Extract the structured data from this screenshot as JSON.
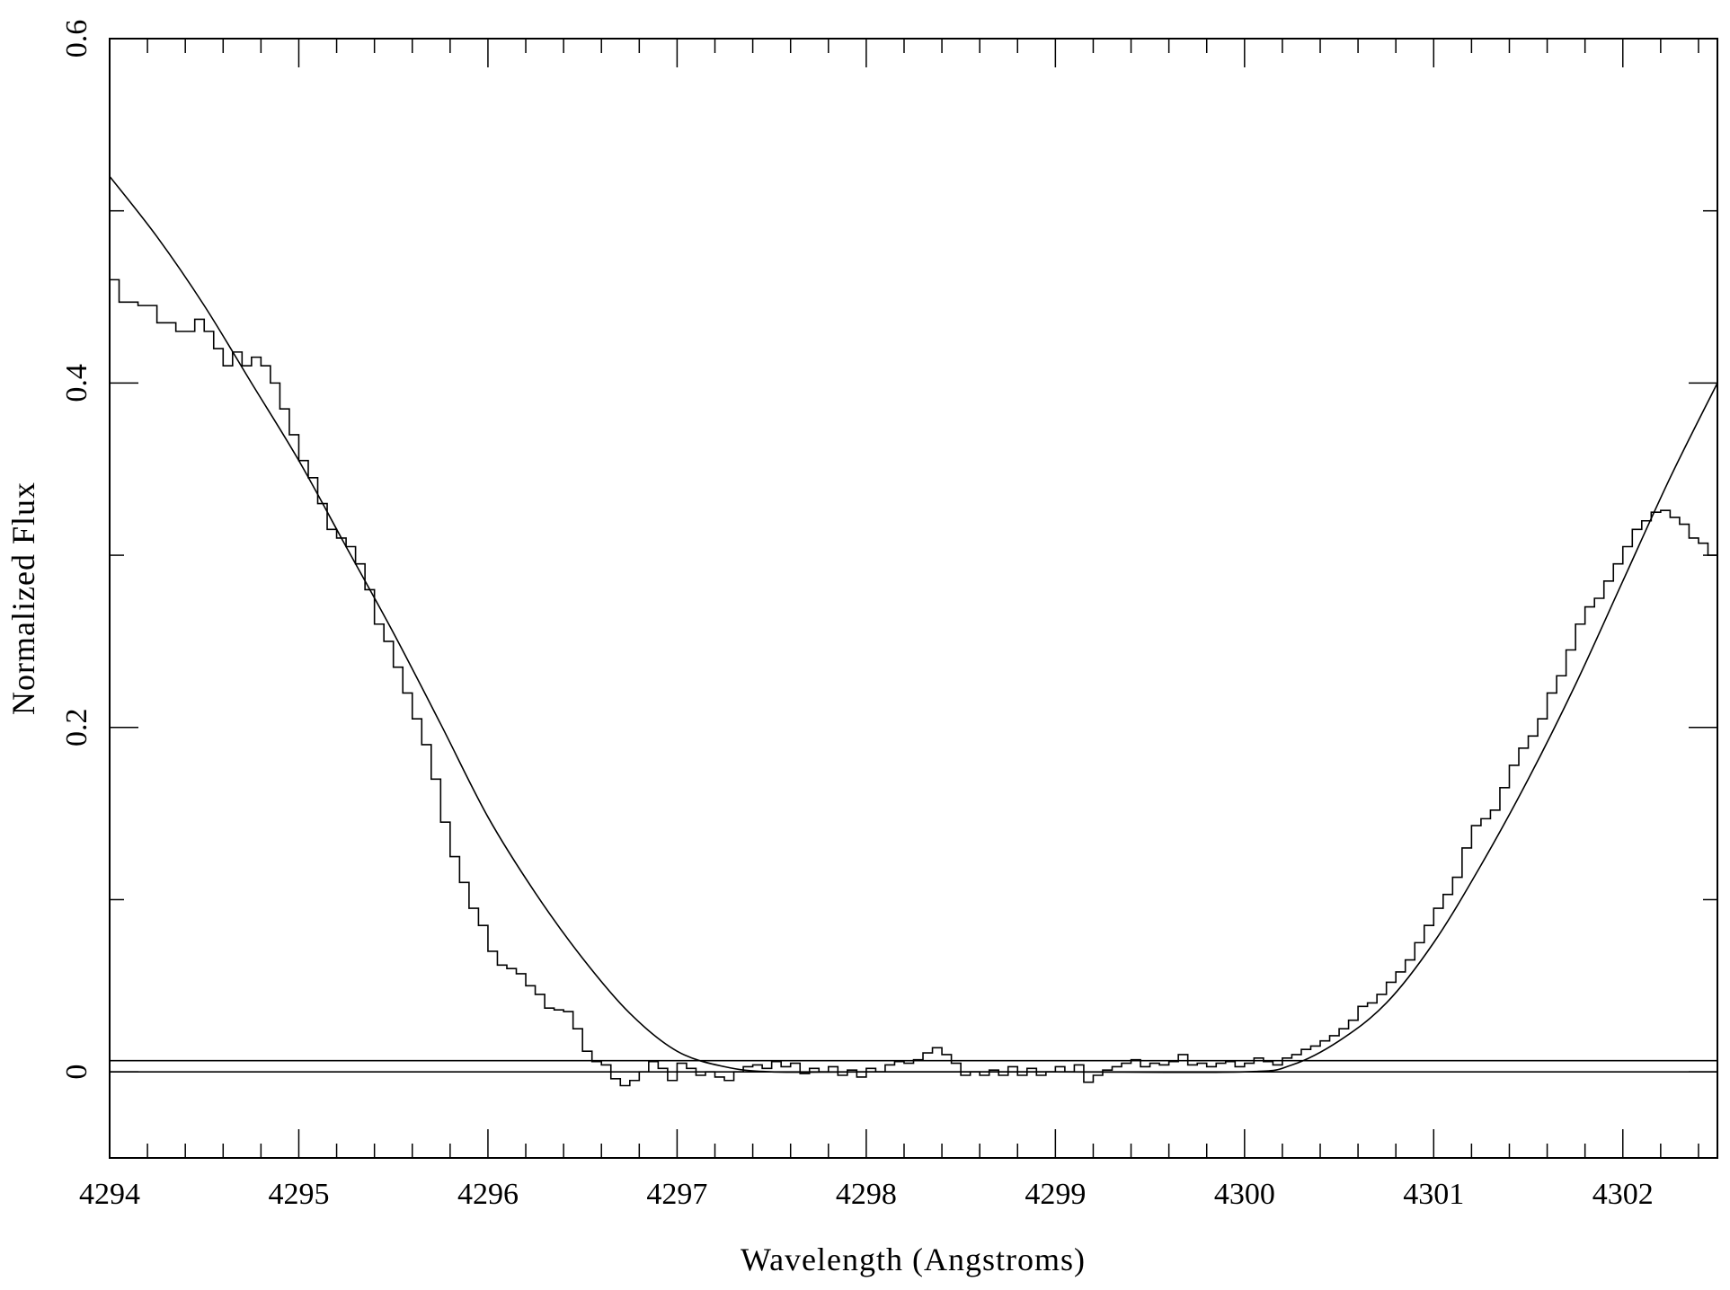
{
  "chart_data": {
    "type": "line",
    "title": "",
    "xlabel": "Wavelength (Angstroms)",
    "ylabel": "Normalized Flux",
    "xlim": [
      4294,
      4302.5
    ],
    "ylim": [
      -0.05,
      0.6
    ],
    "x_ticks": [
      4294,
      4295,
      4296,
      4297,
      4298,
      4299,
      4300,
      4301,
      4302
    ],
    "x_tick_labels": [
      "4294",
      "4295",
      "4296",
      "4297",
      "4298",
      "4299",
      "4300",
      "4301",
      "4302"
    ],
    "y_ticks": [
      0,
      0.2,
      0.4,
      0.6
    ],
    "y_tick_labels": [
      "0",
      "0.2",
      "0.4",
      "0.6"
    ],
    "x_minor_step": 0.2,
    "y_minor_step": 0.1,
    "grid": false,
    "colors": {
      "lines": "#000000",
      "background": "#ffffff"
    },
    "series": [
      {
        "style": "step",
        "x": [
          4294.0,
          4294.05,
          4294.15,
          4294.25,
          4294.35,
          4294.45,
          4294.5,
          4294.55,
          4294.6,
          4294.65,
          4294.7,
          4294.75,
          4294.8,
          4294.85,
          4294.9,
          4294.95,
          4295.0,
          4295.05,
          4295.1,
          4295.15,
          4295.2,
          4295.25,
          4295.3,
          4295.35,
          4295.4,
          4295.45,
          4295.5,
          4295.55,
          4295.6,
          4295.65,
          4295.7,
          4295.75,
          4295.8,
          4295.85,
          4295.9,
          4295.95,
          4296.0,
          4296.05,
          4296.1,
          4296.15,
          4296.2,
          4296.25,
          4296.3,
          4296.35,
          4296.4,
          4296.45,
          4296.5,
          4296.55,
          4296.6,
          4296.65,
          4296.7,
          4296.75,
          4296.8,
          4296.85,
          4296.9,
          4296.95,
          4297.0,
          4297.05,
          4297.1,
          4297.15,
          4297.2,
          4297.25,
          4297.3,
          4297.35,
          4297.4,
          4297.45,
          4297.5,
          4297.55,
          4297.6,
          4297.65,
          4297.7,
          4297.75,
          4297.8,
          4297.85,
          4297.9,
          4297.95,
          4298.0,
          4298.05,
          4298.1,
          4298.15,
          4298.2,
          4298.25,
          4298.3,
          4298.35,
          4298.4,
          4298.45,
          4298.5,
          4298.55,
          4298.6,
          4298.65,
          4298.7,
          4298.75,
          4298.8,
          4298.85,
          4298.9,
          4298.95,
          4299.0,
          4299.05,
          4299.1,
          4299.15,
          4299.2,
          4299.25,
          4299.3,
          4299.35,
          4299.4,
          4299.45,
          4299.5,
          4299.55,
          4299.6,
          4299.65,
          4299.7,
          4299.75,
          4299.8,
          4299.85,
          4299.9,
          4299.95,
          4300.0,
          4300.05,
          4300.1,
          4300.15,
          4300.2,
          4300.25,
          4300.3,
          4300.35,
          4300.4,
          4300.45,
          4300.5,
          4300.55,
          4300.6,
          4300.65,
          4300.7,
          4300.75,
          4300.8,
          4300.85,
          4300.9,
          4300.95,
          4301.0,
          4301.05,
          4301.1,
          4301.15,
          4301.2,
          4301.25,
          4301.3,
          4301.35,
          4301.4,
          4301.45,
          4301.5,
          4301.55,
          4301.6,
          4301.65,
          4301.7,
          4301.75,
          4301.8,
          4301.85,
          4301.9,
          4301.95,
          4302.0,
          4302.05,
          4302.1,
          4302.15,
          4302.2,
          4302.25,
          4302.3,
          4302.35,
          4302.4,
          4302.45,
          4302.5
        ],
        "y": [
          0.46,
          0.447,
          0.445,
          0.435,
          0.43,
          0.437,
          0.43,
          0.42,
          0.41,
          0.418,
          0.41,
          0.415,
          0.41,
          0.4,
          0.385,
          0.37,
          0.355,
          0.345,
          0.33,
          0.315,
          0.31,
          0.305,
          0.295,
          0.28,
          0.26,
          0.25,
          0.235,
          0.22,
          0.205,
          0.19,
          0.17,
          0.145,
          0.125,
          0.11,
          0.095,
          0.085,
          0.07,
          0.062,
          0.06,
          0.057,
          0.05,
          0.045,
          0.037,
          0.036,
          0.035,
          0.025,
          0.012,
          0.006,
          0.004,
          -0.004,
          -0.008,
          -0.005,
          0.0,
          0.006,
          0.002,
          -0.005,
          0.005,
          0.002,
          -0.002,
          0.0,
          -0.003,
          -0.005,
          0.0,
          0.003,
          0.004,
          0.002,
          0.006,
          0.003,
          0.005,
          -0.001,
          0.002,
          0.0,
          0.003,
          -0.002,
          0.001,
          -0.003,
          0.002,
          0.0,
          0.004,
          0.006,
          0.005,
          0.007,
          0.011,
          0.014,
          0.01,
          0.005,
          -0.002,
          0.0,
          -0.002,
          0.001,
          -0.002,
          0.003,
          -0.002,
          0.002,
          -0.002,
          0.0,
          0.003,
          0.0,
          0.004,
          -0.006,
          -0.002,
          0.001,
          0.003,
          0.005,
          0.007,
          0.003,
          0.005,
          0.004,
          0.006,
          0.01,
          0.004,
          0.005,
          0.003,
          0.005,
          0.006,
          0.003,
          0.005,
          0.008,
          0.006,
          0.004,
          0.008,
          0.01,
          0.013,
          0.015,
          0.018,
          0.021,
          0.025,
          0.03,
          0.038,
          0.04,
          0.045,
          0.052,
          0.058,
          0.065,
          0.075,
          0.085,
          0.095,
          0.103,
          0.113,
          0.13,
          0.143,
          0.147,
          0.152,
          0.165,
          0.178,
          0.188,
          0.195,
          0.205,
          0.22,
          0.23,
          0.245,
          0.26,
          0.27,
          0.275,
          0.285,
          0.295,
          0.305,
          0.315,
          0.32,
          0.325,
          0.326,
          0.322,
          0.318,
          0.31,
          0.307,
          0.3,
          0.298
        ]
      },
      {
        "style": "smooth",
        "x": [
          4294.0,
          4294.25,
          4294.5,
          4294.75,
          4295.0,
          4295.25,
          4295.5,
          4295.75,
          4296.0,
          4296.25,
          4296.5,
          4296.75,
          4297.0,
          4297.25,
          4297.5,
          4298.0,
          4299.0,
          4300.0,
          4300.25,
          4300.5,
          4300.75,
          4301.0,
          4301.25,
          4301.5,
          4301.75,
          4302.0,
          4302.25,
          4302.5
        ],
        "y": [
          0.52,
          0.485,
          0.445,
          0.4,
          0.355,
          0.305,
          0.255,
          0.202,
          0.148,
          0.104,
          0.066,
          0.034,
          0.012,
          0.003,
          0.0,
          0.0,
          0.0,
          0.0,
          0.004,
          0.018,
          0.04,
          0.075,
          0.12,
          0.17,
          0.225,
          0.285,
          0.345,
          0.4
        ]
      },
      {
        "style": "line",
        "x": [
          4294,
          4302.5
        ],
        "y": [
          0.0065,
          0.0065
        ]
      },
      {
        "style": "line",
        "x": [
          4294,
          4302.5
        ],
        "y": [
          0,
          0
        ]
      }
    ]
  }
}
